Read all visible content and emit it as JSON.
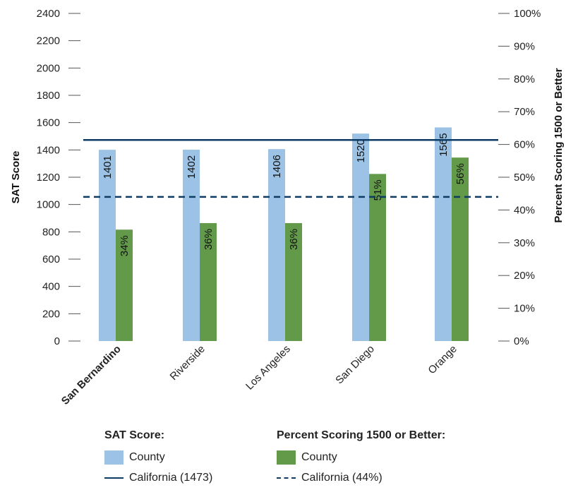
{
  "chart_data": {
    "type": "bar",
    "categories": [
      "San Bernardino",
      "Riverside",
      "Los Angeles",
      "San Diego",
      "Orange"
    ],
    "bold_category": "San Bernardino",
    "series": [
      {
        "name": "County",
        "axis": "left",
        "color": "#9cc3e6",
        "values": [
          1401,
          1402,
          1406,
          1520,
          1565
        ],
        "labels": [
          "1401",
          "1402",
          "1406",
          "1520",
          "1565"
        ]
      },
      {
        "name": "County",
        "axis": "right",
        "color": "#629a4a",
        "values": [
          34,
          36,
          36,
          51,
          56
        ],
        "labels": [
          "34%",
          "36%",
          "36%",
          "51%",
          "56%"
        ]
      }
    ],
    "reference_lines": [
      {
        "name": "California (1473)",
        "axis": "left",
        "value": 1473,
        "style": "solid",
        "color": "#0d3b63"
      },
      {
        "name": "California (44%)",
        "axis": "right",
        "value": 44,
        "style": "dashed",
        "color": "#0d3b63"
      }
    ],
    "ylabel": "SAT Score",
    "ylabel_right": "Percent Scoring 1500 or Better",
    "ylim": [
      0,
      2400
    ],
    "ylim_right": [
      0,
      100
    ],
    "yticks": [
      "0",
      "200",
      "400",
      "600",
      "800",
      "1000",
      "1200",
      "1400",
      "1600",
      "1800",
      "2000",
      "2200",
      "2400"
    ],
    "yticks_right": [
      "0%",
      "10%",
      "20%",
      "30%",
      "40%",
      "50%",
      "60%",
      "70%",
      "80%",
      "90%",
      "100%"
    ],
    "grid": false
  },
  "legend": {
    "sat": {
      "title": "SAT Score:",
      "county": "County",
      "california": "California (1473)"
    },
    "pct": {
      "title": "Percent Scoring 1500 or Better:",
      "county": "County",
      "california": "California (44%)"
    }
  }
}
